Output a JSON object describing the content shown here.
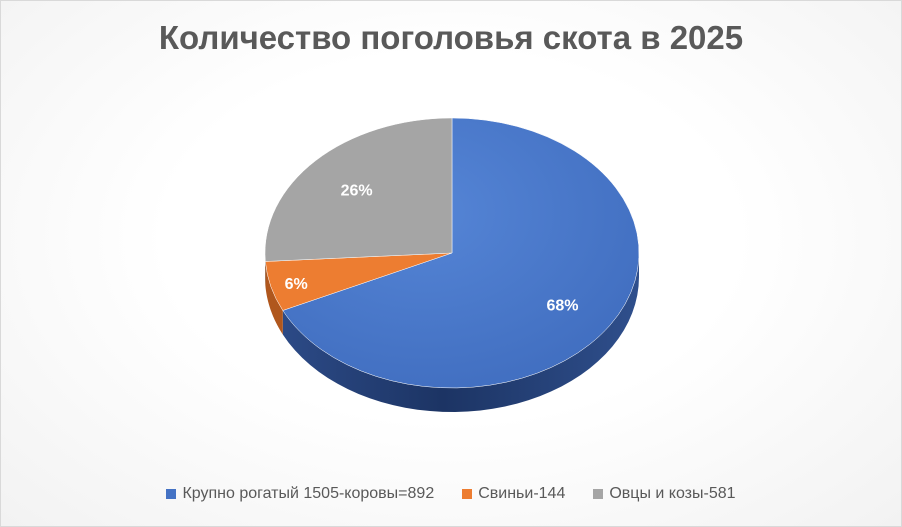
{
  "chart_data": {
    "type": "pie",
    "title": "Количество поголовья скота в 2025",
    "categories": [
      "Крупно рогатый 1505-коровы=892",
      "Свиньи-144",
      "Овцы и козы-581"
    ],
    "values": [
      68,
      6,
      26
    ],
    "labels": [
      "68%",
      "6%",
      "26%"
    ],
    "colors": [
      "#4472c4",
      "#ed7d31",
      "#a5a5a5"
    ],
    "legend": "bottom"
  }
}
